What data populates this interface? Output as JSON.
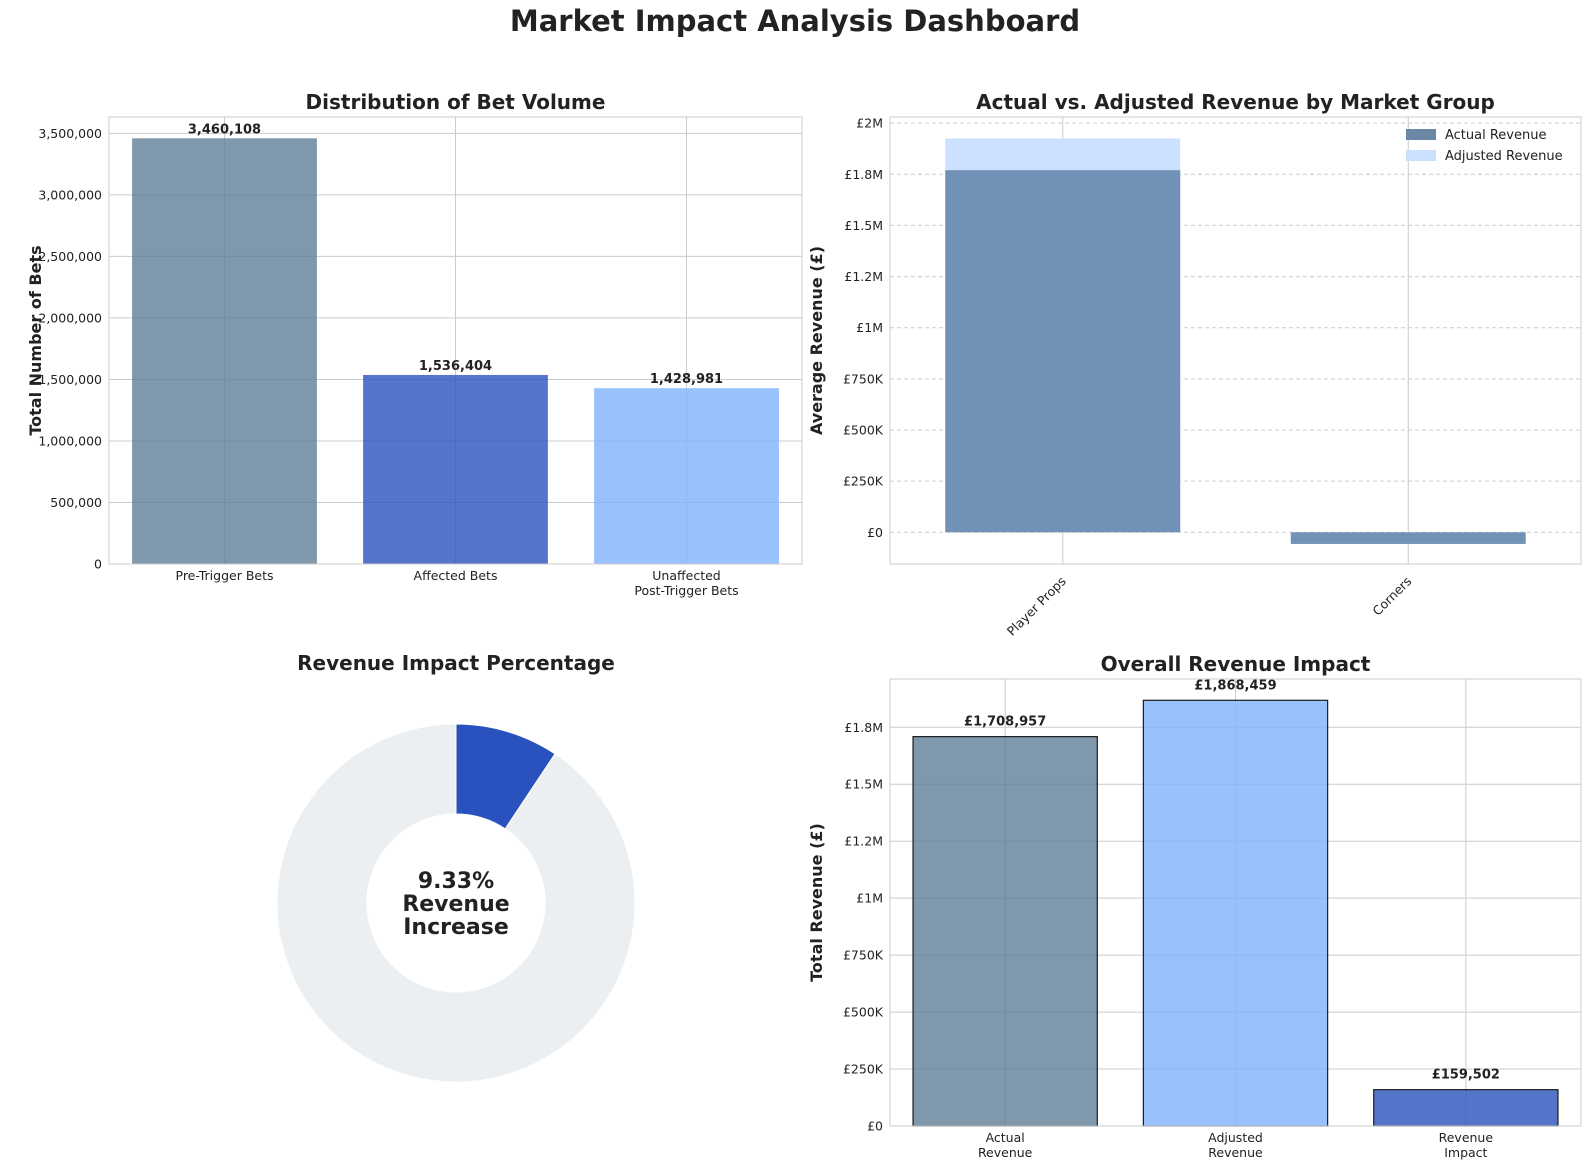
{
  "title": "Market Impact Analysis Dashboard",
  "colors": {
    "slate": "#5f7e96",
    "royal": "#2a52be",
    "sky": "#7fb2fd",
    "actual": "#6b8db3",
    "adjusted": "#cce0ff",
    "donut_bg": "#eceff1",
    "donut_fg": "#2a52be",
    "grid": "#cccccc"
  },
  "chart_data": [
    {
      "type": "bar",
      "title": "Distribution of Bet Volume",
      "xlabel": "",
      "ylabel": "Total Number of Bets",
      "categories": [
        "Pre-Trigger Bets",
        "Affected Bets",
        "Unaffected\nPost-Trigger Bets"
      ],
      "values": [
        3460108,
        1536404,
        1428981
      ],
      "value_labels": [
        "3,460,108",
        "1,536,404",
        "1,428,981"
      ],
      "yticks": [
        0,
        500000,
        1000000,
        1500000,
        2000000,
        2500000,
        3000000,
        3500000
      ],
      "ytick_labels": [
        "0",
        "500,000",
        "1,000,000",
        "1,500,000",
        "2,000,000",
        "2,500,000",
        "3,000,000",
        "3,500,000"
      ],
      "ylim": [
        0,
        3633113
      ],
      "grid": true
    },
    {
      "type": "bar",
      "title": "Actual vs. Adjusted Revenue by Market Group",
      "xlabel": "",
      "ylabel": "Average Revenue (£)",
      "categories": [
        "Player Props",
        "Corners"
      ],
      "series": [
        {
          "name": "Actual Revenue",
          "values": [
            1770000,
            -57000
          ]
        },
        {
          "name": "Adjusted Revenue",
          "values": [
            1925000,
            -45000
          ]
        }
      ],
      "yticks": [
        0,
        250000,
        500000,
        750000,
        1000000,
        1250000,
        1500000,
        1750000,
        2000000
      ],
      "ytick_labels": [
        "£0",
        "£250K",
        "£500K",
        "£750K",
        "£1M",
        "£1.2M",
        "£1.5M",
        "£1.8M",
        "£2M"
      ],
      "ylim": [
        -155000,
        2030000
      ],
      "legend": "top-right",
      "grid": true
    },
    {
      "type": "pie",
      "title": "Revenue Impact Percentage",
      "slices": [
        {
          "label": "Revenue Increase",
          "value": 9.33
        },
        {
          "label": "Remainder",
          "value": 90.67
        }
      ],
      "center_text": [
        "9.33%",
        "Revenue",
        "Increase"
      ]
    },
    {
      "type": "bar",
      "title": "Overall Revenue Impact",
      "xlabel": "",
      "ylabel": "Total Revenue (£)",
      "categories": [
        "Actual\nRevenue",
        "Adjusted\nRevenue",
        "Revenue\nImpact"
      ],
      "values": [
        1708957,
        1868459,
        159502
      ],
      "value_labels": [
        "£1,708,957",
        "£1,868,459",
        "£159,502"
      ],
      "yticks": [
        0,
        250000,
        500000,
        750000,
        1000000,
        1250000,
        1500000,
        1750000
      ],
      "ytick_labels": [
        "£0",
        "£250K",
        "£500K",
        "£750K",
        "£1M",
        "£1.2M",
        "£1.5M",
        "£1.8M"
      ],
      "ylim": [
        0,
        1961882
      ],
      "grid": true
    }
  ]
}
